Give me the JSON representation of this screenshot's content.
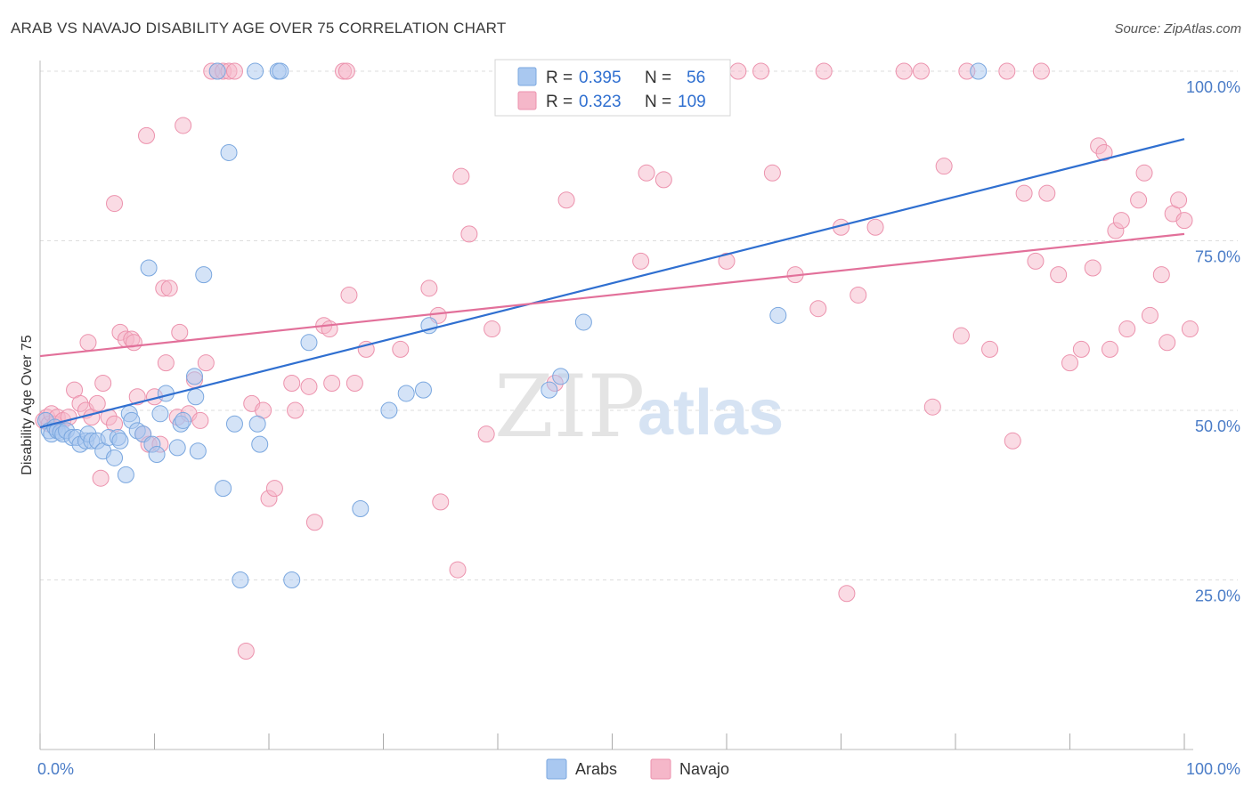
{
  "header": {
    "title": "ARAB VS NAVAJO DISABILITY AGE OVER 75 CORRELATION CHART",
    "source": "Source: ZipAtlas.com"
  },
  "watermark": {
    "part1": "ZIP",
    "part2": "atlas"
  },
  "colors": {
    "arabs_fill": "#a9c8f0",
    "arabs_stroke": "#7aa7df",
    "arabs_line": "#2f6fd0",
    "navajo_fill": "#f5b7c9",
    "navajo_stroke": "#ec92ad",
    "navajo_line": "#e2709a",
    "grid": "#dddddd",
    "tick_text": "#4a7cc7"
  },
  "legend": {
    "rows": [
      {
        "r_label": "R =",
        "r_value": "0.395",
        "n_label": "N =",
        "n_value": "56"
      },
      {
        "r_label": "R =",
        "r_value": "0.323",
        "n_label": "N =",
        "n_value": "109"
      }
    ],
    "bottom": [
      "Arabs",
      "Navajo"
    ]
  },
  "chart_data": {
    "type": "scatter",
    "title": "ARAB VS NAVAJO DISABILITY AGE OVER 75 CORRELATION CHART",
    "xlabel": "",
    "ylabel": "Disability Age Over 75",
    "xlim": [
      0,
      100
    ],
    "ylim": [
      0,
      105
    ],
    "x_tick_labels": [
      "0.0%",
      "100.0%"
    ],
    "y_ticks": [
      25,
      50,
      75,
      100
    ],
    "y_tick_labels": [
      "25.0%",
      "50.0%",
      "75.0%",
      "100.0%"
    ],
    "grid": true,
    "legend_position": "top-center",
    "series": [
      {
        "name": "Arabs",
        "r": 0.395,
        "n": 56,
        "trend": {
          "x": [
            0,
            100
          ],
          "y": [
            47.5,
            90
          ]
        },
        "points": [
          [
            0.5,
            48.5
          ],
          [
            0.8,
            47
          ],
          [
            1,
            46.5
          ],
          [
            1.3,
            47.5
          ],
          [
            1.5,
            47
          ],
          [
            1.8,
            46.8
          ],
          [
            2,
            46.5
          ],
          [
            2.3,
            47
          ],
          [
            2.8,
            46
          ],
          [
            3.2,
            46
          ],
          [
            3.5,
            45
          ],
          [
            4,
            45.5
          ],
          [
            4.2,
            46.5
          ],
          [
            4.5,
            45.5
          ],
          [
            5,
            45.5
          ],
          [
            5.5,
            44
          ],
          [
            6,
            46
          ],
          [
            6.5,
            43
          ],
          [
            6.8,
            46
          ],
          [
            7,
            45.5
          ],
          [
            7.5,
            40.5
          ],
          [
            7.8,
            49.5
          ],
          [
            8,
            48.5
          ],
          [
            8.5,
            47
          ],
          [
            9,
            46.5
          ],
          [
            9.5,
            71
          ],
          [
            9.8,
            45
          ],
          [
            10.2,
            43.5
          ],
          [
            10.5,
            49.5
          ],
          [
            11,
            52.5
          ],
          [
            12,
            44.5
          ],
          [
            12.3,
            48
          ],
          [
            12.5,
            48.5
          ],
          [
            13.5,
            55
          ],
          [
            13.6,
            52
          ],
          [
            13.8,
            44
          ],
          [
            14.3,
            70
          ],
          [
            16,
            38.5
          ],
          [
            16.5,
            88
          ],
          [
            17,
            48
          ],
          [
            17.5,
            25
          ],
          [
            18.8,
            100
          ],
          [
            19,
            48
          ],
          [
            19.2,
            45
          ],
          [
            20.8,
            100
          ],
          [
            21,
            100
          ],
          [
            22,
            25
          ],
          [
            23.5,
            60
          ],
          [
            28,
            35.5
          ],
          [
            30.5,
            50
          ],
          [
            32,
            52.5
          ],
          [
            33.5,
            53
          ],
          [
            34,
            62.5
          ],
          [
            44.5,
            53
          ],
          [
            45.5,
            55
          ],
          [
            47.5,
            63
          ],
          [
            64.5,
            64
          ],
          [
            82,
            100
          ],
          [
            15.5,
            100
          ]
        ]
      },
      {
        "name": "Navajo",
        "r": 0.323,
        "n": 109,
        "trend": {
          "x": [
            0,
            100
          ],
          "y": [
            58,
            76
          ]
        },
        "points": [
          [
            0.3,
            48.5
          ],
          [
            0.6,
            49
          ],
          [
            0.8,
            48
          ],
          [
            1,
            49.5
          ],
          [
            1.3,
            48
          ],
          [
            1.5,
            49
          ],
          [
            2,
            48.5
          ],
          [
            2.5,
            49
          ],
          [
            3,
            53
          ],
          [
            3.5,
            51
          ],
          [
            4,
            50
          ],
          [
            4.2,
            60
          ],
          [
            4.5,
            49
          ],
          [
            5,
            51
          ],
          [
            5.3,
            40
          ],
          [
            5.5,
            54
          ],
          [
            6,
            49
          ],
          [
            6.5,
            48
          ],
          [
            6.5,
            80.5
          ],
          [
            7,
            61.5
          ],
          [
            7.5,
            60.5
          ],
          [
            8,
            60.5
          ],
          [
            8.2,
            60
          ],
          [
            8.5,
            52
          ],
          [
            9,
            46.5
          ],
          [
            9.3,
            90.5
          ],
          [
            9.5,
            45
          ],
          [
            10,
            52
          ],
          [
            10.5,
            45
          ],
          [
            10.8,
            68
          ],
          [
            11,
            57
          ],
          [
            11.3,
            68
          ],
          [
            12,
            49
          ],
          [
            12.2,
            61.5
          ],
          [
            12.5,
            92
          ],
          [
            13,
            49.5
          ],
          [
            13.5,
            54.5
          ],
          [
            14,
            48.5
          ],
          [
            14.5,
            57
          ],
          [
            15,
            100
          ],
          [
            15.5,
            100
          ],
          [
            16,
            100
          ],
          [
            16.5,
            100
          ],
          [
            17,
            100
          ],
          [
            18,
            14.5
          ],
          [
            18.5,
            51
          ],
          [
            19.5,
            50
          ],
          [
            20,
            37
          ],
          [
            20.5,
            38.5
          ],
          [
            22,
            54
          ],
          [
            22.3,
            50
          ],
          [
            23.5,
            53.5
          ],
          [
            24,
            33.5
          ],
          [
            24.8,
            62.5
          ],
          [
            25.3,
            62
          ],
          [
            25.5,
            54
          ],
          [
            26.5,
            100
          ],
          [
            26.8,
            100
          ],
          [
            27,
            67
          ],
          [
            27.5,
            54
          ],
          [
            28.5,
            59
          ],
          [
            31.5,
            59
          ],
          [
            34,
            68
          ],
          [
            34.8,
            64
          ],
          [
            35,
            36.5
          ],
          [
            36.5,
            26.5
          ],
          [
            36.8,
            84.5
          ],
          [
            37.5,
            76
          ],
          [
            39,
            46.5
          ],
          [
            39.5,
            62
          ],
          [
            42.5,
            100
          ],
          [
            45,
            54
          ],
          [
            46,
            81
          ],
          [
            50,
            100
          ],
          [
            52.5,
            72
          ],
          [
            53,
            85
          ],
          [
            54.5,
            84
          ],
          [
            56,
            100
          ],
          [
            57,
            100
          ],
          [
            60,
            72
          ],
          [
            61,
            100
          ],
          [
            63,
            100
          ],
          [
            64,
            85
          ],
          [
            66,
            70
          ],
          [
            68,
            65
          ],
          [
            68.5,
            100
          ],
          [
            70,
            77
          ],
          [
            70.5,
            23
          ],
          [
            71.5,
            67
          ],
          [
            73,
            77
          ],
          [
            75.5,
            100
          ],
          [
            77,
            100
          ],
          [
            78,
            50.5
          ],
          [
            79,
            86
          ],
          [
            80.5,
            61
          ],
          [
            81,
            100
          ],
          [
            83,
            59
          ],
          [
            84.5,
            100
          ],
          [
            85,
            45.5
          ],
          [
            86,
            82
          ],
          [
            87,
            72
          ],
          [
            87.5,
            100
          ],
          [
            88,
            82
          ],
          [
            89,
            70
          ],
          [
            90,
            57
          ],
          [
            91,
            59
          ],
          [
            92,
            71
          ],
          [
            92.5,
            89
          ],
          [
            93,
            88
          ],
          [
            93.5,
            59
          ],
          [
            94,
            76.5
          ],
          [
            94.5,
            78
          ],
          [
            95,
            62
          ],
          [
            96,
            81
          ],
          [
            96.5,
            85
          ],
          [
            97,
            64
          ],
          [
            98,
            70
          ],
          [
            98.5,
            60
          ],
          [
            99,
            79
          ],
          [
            99.5,
            81
          ],
          [
            100,
            78
          ],
          [
            100.5,
            62
          ]
        ]
      }
    ]
  }
}
